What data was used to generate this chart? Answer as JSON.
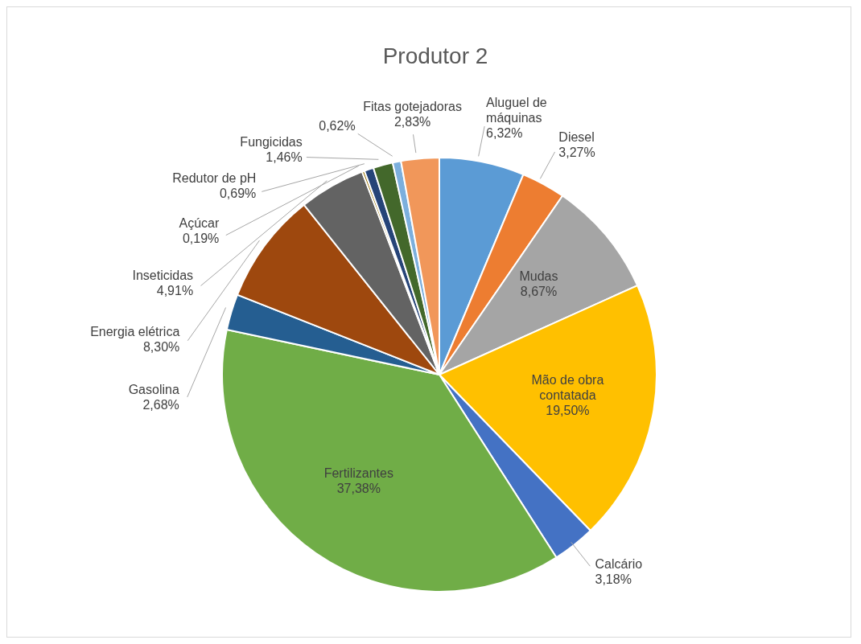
{
  "chart_data": {
    "type": "pie",
    "title": "Produtor 2",
    "categories": [
      "Aluguel de máquinas",
      "Diesel",
      "Mudas",
      "Mão de obra contatada",
      "Calcário",
      "Fertilizantes",
      "Gasolina",
      "Energia elétrica",
      "Inseticidas",
      "Açúcar",
      "Redutor de pH",
      "Fungicidas",
      null,
      "Fitas gotejadoras"
    ],
    "values": [
      6.32,
      3.27,
      8.67,
      19.5,
      3.18,
      37.38,
      2.68,
      8.3,
      4.91,
      0.19,
      0.69,
      1.46,
      0.62,
      2.83
    ],
    "value_labels": [
      "6,32%",
      "3,27%",
      "8,67%",
      "19,50%",
      "3,18%",
      "37,38%",
      "2,68%",
      "8,30%",
      "4,91%",
      "0,19%",
      "0,69%",
      "1,46%",
      "0,62%",
      "2,83%"
    ],
    "colors": [
      "#5b9bd5",
      "#ed7d31",
      "#a5a5a5",
      "#ffc000",
      "#4472c4",
      "#70ad47",
      "#255e91",
      "#9e480e",
      "#636363",
      "#997300",
      "#264478",
      "#43682b",
      "#7cafdd",
      "#f1975a"
    ]
  }
}
